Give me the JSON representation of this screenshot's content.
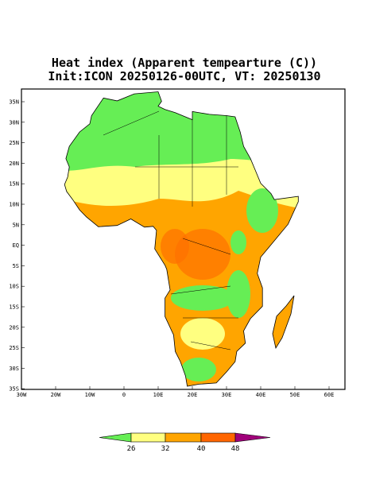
{
  "header": {
    "title": "Heat index (Apparent tempearture (C))",
    "subtitle": "Init:ICON 20250126-00UTC, VT: 20250130"
  },
  "map": {
    "lat_labels": [
      "35N",
      "30N",
      "25N",
      "20N",
      "15N",
      "10N",
      "5N",
      "EQ",
      "5S",
      "10S",
      "15S",
      "20S",
      "25S",
      "30S",
      "35S"
    ],
    "lon_labels": [
      "30W",
      "20W",
      "10W",
      "0",
      "10E",
      "20E",
      "30E",
      "40E",
      "50E",
      "60E"
    ]
  },
  "colorbar": {
    "labels": [
      "26",
      "32",
      "40",
      "48"
    ]
  }
}
